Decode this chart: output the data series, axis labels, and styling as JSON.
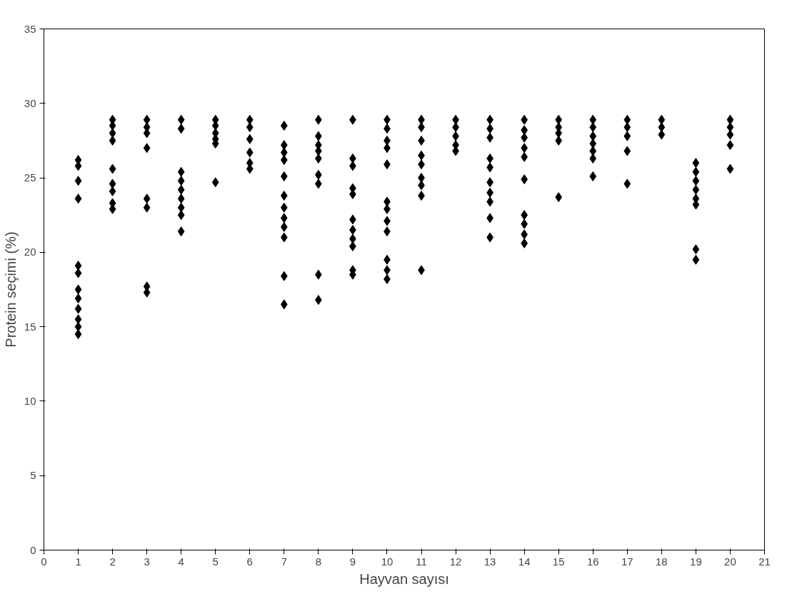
{
  "chart_data": {
    "type": "scatter",
    "xlabel": "Hayvan sayısı",
    "ylabel": "Protein seçimi (%)",
    "xlim": [
      0,
      21
    ],
    "xticks": [
      0,
      1,
      2,
      3,
      4,
      5,
      6,
      7,
      8,
      9,
      10,
      11,
      12,
      13,
      14,
      15,
      16,
      17,
      18,
      19,
      20,
      21
    ],
    "ylim": [
      0,
      35
    ],
    "yticks": [
      0,
      5,
      10,
      15,
      20,
      25,
      30,
      35
    ],
    "grid": false,
    "marker": "diamond",
    "series": [
      {
        "color": "#000000",
        "x": [
          1,
          1,
          1,
          1,
          1,
          1,
          1,
          1,
          1,
          1,
          1,
          1,
          2,
          2,
          2,
          2,
          2,
          2,
          2,
          2,
          2,
          3,
          3,
          3,
          3,
          3,
          3,
          3,
          3,
          4,
          4,
          4,
          4,
          4,
          4,
          4,
          4,
          4,
          5,
          5,
          5,
          5,
          5,
          5,
          6,
          6,
          6,
          6,
          6,
          6,
          7,
          7,
          7,
          7,
          7,
          7,
          7,
          7,
          7,
          7,
          7,
          7,
          8,
          8,
          8,
          8,
          8,
          8,
          8,
          8,
          8,
          9,
          9,
          9,
          9,
          9,
          9,
          9,
          9,
          9,
          9,
          9,
          10,
          10,
          10,
          10,
          10,
          10,
          10,
          10,
          10,
          10,
          10,
          10,
          11,
          11,
          11,
          11,
          11,
          11,
          11,
          11,
          11,
          12,
          12,
          12,
          12,
          12,
          13,
          13,
          13,
          13,
          13,
          13,
          13,
          13,
          13,
          13,
          14,
          14,
          14,
          14,
          14,
          14,
          14,
          14,
          14,
          14,
          15,
          15,
          15,
          15,
          15,
          16,
          16,
          16,
          16,
          16,
          16,
          16,
          17,
          17,
          17,
          17,
          17,
          18,
          18,
          18,
          19,
          19,
          19,
          19,
          19,
          19,
          19,
          19,
          20,
          20,
          20,
          20,
          20
        ],
        "values": [
          26.2,
          25.8,
          24.8,
          23.6,
          19.1,
          18.6,
          17.5,
          16.9,
          16.2,
          15.5,
          15.0,
          14.5,
          28.9,
          28.5,
          28.0,
          27.5,
          25.6,
          24.6,
          24.1,
          23.3,
          22.9,
          28.9,
          28.4,
          28.0,
          27.0,
          23.6,
          23.0,
          17.7,
          17.3,
          28.9,
          28.3,
          25.4,
          24.8,
          24.2,
          23.6,
          23.0,
          22.5,
          21.4,
          28.9,
          28.5,
          28.0,
          27.6,
          27.3,
          24.7,
          28.9,
          28.4,
          27.6,
          26.7,
          26.0,
          25.6,
          28.5,
          27.2,
          26.7,
          26.2,
          25.1,
          23.8,
          23.0,
          22.3,
          21.7,
          21.0,
          18.4,
          16.5,
          28.9,
          27.8,
          27.2,
          26.8,
          26.3,
          25.2,
          24.6,
          18.5,
          16.8,
          28.9,
          26.3,
          25.8,
          24.3,
          23.9,
          22.2,
          21.5,
          20.9,
          20.4,
          18.8,
          18.5,
          28.9,
          28.3,
          27.5,
          27.0,
          25.9,
          23.4,
          22.9,
          22.1,
          21.4,
          19.5,
          18.8,
          18.2,
          28.9,
          28.4,
          27.5,
          26.5,
          25.9,
          25.0,
          24.5,
          23.8,
          18.8,
          28.9,
          28.4,
          27.8,
          27.2,
          26.8,
          28.9,
          28.3,
          27.7,
          26.3,
          25.7,
          24.7,
          24.0,
          23.4,
          22.3,
          21.0,
          28.9,
          28.2,
          27.7,
          27.0,
          26.4,
          24.9,
          22.5,
          21.9,
          21.2,
          20.6,
          28.9,
          28.4,
          28.0,
          27.5,
          23.7,
          28.9,
          28.4,
          27.8,
          27.3,
          26.8,
          26.3,
          25.1,
          28.9,
          28.4,
          27.8,
          26.8,
          24.6,
          28.9,
          28.4,
          27.9,
          26.0,
          25.4,
          24.8,
          24.2,
          23.6,
          23.2,
          20.2,
          19.5,
          28.9,
          28.4,
          27.9,
          27.2,
          25.6
        ]
      }
    ]
  }
}
